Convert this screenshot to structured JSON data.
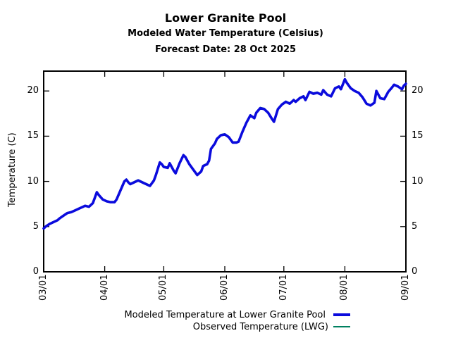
{
  "chart_data": {
    "type": "line",
    "title": "Lower Granite Pool",
    "subtitle": "Modeled Water Temperature (Celsius)",
    "forecast_note": "Forecast Date: 28 Oct 2025",
    "ylabel": "Temperature (C)",
    "ylim": [
      0,
      22.2
    ],
    "yticks": [
      0,
      5,
      10,
      15,
      20
    ],
    "y_axis_mirrored_right": true,
    "x_total_days": 184,
    "xticks": [
      {
        "label": "03/01",
        "day": 0
      },
      {
        "label": "04/01",
        "day": 31
      },
      {
        "label": "05/01",
        "day": 61
      },
      {
        "label": "06/01",
        "day": 92
      },
      {
        "label": "07/01",
        "day": 122
      },
      {
        "label": "08/01",
        "day": 153
      },
      {
        "label": "09/01",
        "day": 184
      }
    ],
    "grid": false,
    "legend_position": "below-plot-right",
    "axis_color": "#000000",
    "series": [
      {
        "name": "Modeled Temperature at Lower Granite Pool",
        "color": "#0b0bdd",
        "width": 3.6,
        "points": [
          [
            0,
            4.8
          ],
          [
            1,
            5.0
          ],
          [
            3,
            5.3
          ],
          [
            5,
            5.5
          ],
          [
            7,
            5.7
          ],
          [
            8,
            5.9
          ],
          [
            10,
            6.2
          ],
          [
            12,
            6.5
          ],
          [
            14,
            6.6
          ],
          [
            16,
            6.8
          ],
          [
            18,
            7.0
          ],
          [
            20,
            7.2
          ],
          [
            21,
            7.3
          ],
          [
            23,
            7.2
          ],
          [
            25,
            7.6
          ],
          [
            26,
            8.2
          ],
          [
            27,
            8.8
          ],
          [
            28,
            8.5
          ],
          [
            30,
            8.0
          ],
          [
            32,
            7.8
          ],
          [
            34,
            7.7
          ],
          [
            36,
            7.7
          ],
          [
            37,
            8.0
          ],
          [
            39,
            9.0
          ],
          [
            41,
            10.0
          ],
          [
            42,
            10.2
          ],
          [
            43,
            9.9
          ],
          [
            44,
            9.7
          ],
          [
            46,
            9.9
          ],
          [
            48,
            10.1
          ],
          [
            50,
            9.9
          ],
          [
            52,
            9.7
          ],
          [
            54,
            9.5
          ],
          [
            56,
            10.1
          ],
          [
            57,
            10.7
          ],
          [
            59,
            12.1
          ],
          [
            60,
            11.9
          ],
          [
            61,
            11.6
          ],
          [
            63,
            11.5
          ],
          [
            64,
            12.0
          ],
          [
            66,
            11.2
          ],
          [
            67,
            10.9
          ],
          [
            69,
            12.0
          ],
          [
            71,
            12.9
          ],
          [
            72,
            12.7
          ],
          [
            74,
            11.9
          ],
          [
            76,
            11.3
          ],
          [
            78,
            10.7
          ],
          [
            80,
            11.1
          ],
          [
            81,
            11.7
          ],
          [
            83,
            11.9
          ],
          [
            84,
            12.3
          ],
          [
            85,
            13.6
          ],
          [
            87,
            14.2
          ],
          [
            88,
            14.7
          ],
          [
            90,
            15.1
          ],
          [
            92,
            15.2
          ],
          [
            94,
            14.9
          ],
          [
            96,
            14.3
          ],
          [
            98,
            14.3
          ],
          [
            99,
            14.4
          ],
          [
            101,
            15.5
          ],
          [
            103,
            16.5
          ],
          [
            105,
            17.3
          ],
          [
            107,
            17.0
          ],
          [
            108,
            17.6
          ],
          [
            110,
            18.1
          ],
          [
            112,
            18.0
          ],
          [
            114,
            17.6
          ],
          [
            116,
            16.9
          ],
          [
            117,
            16.6
          ],
          [
            119,
            18.0
          ],
          [
            121,
            18.5
          ],
          [
            123,
            18.8
          ],
          [
            125,
            18.6
          ],
          [
            127,
            19.0
          ],
          [
            128,
            18.8
          ],
          [
            130,
            19.2
          ],
          [
            132,
            19.4
          ],
          [
            133,
            19.0
          ],
          [
            135,
            19.9
          ],
          [
            137,
            19.7
          ],
          [
            139,
            19.8
          ],
          [
            141,
            19.6
          ],
          [
            142,
            20.1
          ],
          [
            144,
            19.6
          ],
          [
            146,
            19.4
          ],
          [
            148,
            20.3
          ],
          [
            150,
            20.5
          ],
          [
            151,
            20.2
          ],
          [
            153,
            21.3
          ],
          [
            154,
            20.9
          ],
          [
            156,
            20.3
          ],
          [
            158,
            20.0
          ],
          [
            160,
            19.8
          ],
          [
            162,
            19.3
          ],
          [
            164,
            18.6
          ],
          [
            166,
            18.4
          ],
          [
            168,
            18.7
          ],
          [
            169,
            20.0
          ],
          [
            171,
            19.2
          ],
          [
            173,
            19.1
          ],
          [
            175,
            19.9
          ],
          [
            177,
            20.4
          ],
          [
            178,
            20.7
          ],
          [
            180,
            20.5
          ],
          [
            182,
            20.2
          ],
          [
            183,
            20.6
          ],
          [
            184,
            20.8
          ]
        ]
      },
      {
        "name": "Observed Temperature (LWG)",
        "color": "#008060",
        "width": 1.5,
        "points_same_as_series": 0,
        "note": "coincides with modeled line; barely peeks out along mid-season peaks",
        "visible_overlap_day_range": [
          35,
          140
        ]
      }
    ]
  }
}
